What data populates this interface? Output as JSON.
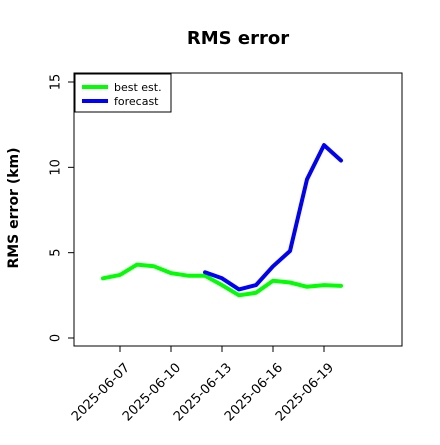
{
  "chart_data": {
    "type": "line",
    "title": "RMS error",
    "ylabel": "RMS error (km)",
    "xlabel": "",
    "ylim": [
      0,
      15
    ],
    "yticks": [
      0,
      5,
      10,
      15
    ],
    "xticks": [
      "2025-06-07",
      "2025-06-10",
      "2025-06-13",
      "2025-06-16",
      "2025-06-19"
    ],
    "legend_position": "top-left",
    "grid": false,
    "series": [
      {
        "name": "best est.",
        "color": "#00ff00",
        "x": [
          "2025-06-06",
          "2025-06-07",
          "2025-06-08",
          "2025-06-09",
          "2025-06-10",
          "2025-06-11",
          "2025-06-12",
          "2025-06-13",
          "2025-06-14",
          "2025-06-15",
          "2025-06-16",
          "2025-06-17",
          "2025-06-18",
          "2025-06-19",
          "2025-06-20"
        ],
        "values": [
          3.5,
          3.7,
          4.3,
          4.2,
          3.8,
          3.65,
          3.65,
          3.1,
          2.5,
          2.65,
          3.35,
          3.25,
          3.0,
          3.1,
          3.05
        ]
      },
      {
        "name": "forecast",
        "color": "#0000ff",
        "x": [
          "2025-06-12",
          "2025-06-13",
          "2025-06-14",
          "2025-06-15",
          "2025-06-16",
          "2025-06-17",
          "2025-06-18",
          "2025-06-19",
          "2025-06-20"
        ],
        "values": [
          3.85,
          3.5,
          2.85,
          3.1,
          4.2,
          5.1,
          9.3,
          11.3,
          10.4
        ]
      }
    ]
  }
}
